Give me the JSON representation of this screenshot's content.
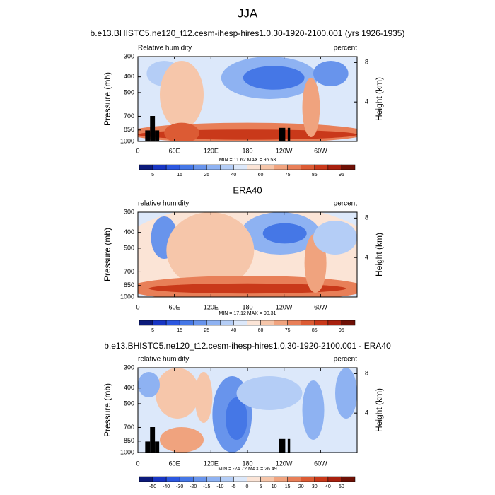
{
  "title": "JJA",
  "chart_data": [
    {
      "type": "contour",
      "title": "b.e13.BHISTC5.ne120_t12.cesm-ihesp-hires1.0.30-1920-2100.001 (yrs 1926-1935)",
      "left_label": "Relative humidity",
      "right_label": "percent",
      "stats": "MIN = 11.62  MAX = 96.53",
      "ylabel": "Pressure (mb)",
      "y2label": "Height (km)",
      "xlim": [
        0,
        360
      ],
      "xticks": [
        0,
        {
          "value": 60,
          "label": "60E"
        },
        {
          "value": 120,
          "label": "120E"
        },
        180,
        {
          "value": 240,
          "label": "120W"
        },
        {
          "value": 300,
          "label": "60W"
        }
      ],
      "ylim": [
        1000,
        300
      ],
      "yticks": [
        300,
        400,
        500,
        700,
        850,
        1000
      ],
      "ylog": true,
      "y2lim": [
        0,
        8.6
      ],
      "y2ticks": [
        4,
        8
      ],
      "colorbar": {
        "labels": [
          5,
          15,
          25,
          40,
          60,
          75,
          85,
          95
        ],
        "colors": [
          "#0c1a7a",
          "#1836c4",
          "#2c57e0",
          "#4577e6",
          "#6894ec",
          "#8eb2f2",
          "#b4cdf6",
          "#dce8fa",
          "#fbe4d6",
          "#f6c6aa",
          "#f0a37e",
          "#e87f58",
          "#dc5b34",
          "#c9391a",
          "#a8200e",
          "#6e1005"
        ]
      }
    },
    {
      "type": "contour",
      "title": "ERA40",
      "left_label": "relative humidity",
      "right_label": "percent",
      "stats": "MIN = 17.12  MAX = 90.31",
      "ylabel": "Pressure (mb)",
      "y2label": "Height (km)",
      "xlim": [
        0,
        360
      ],
      "xticks": [
        0,
        {
          "value": 60,
          "label": "60E"
        },
        {
          "value": 120,
          "label": "120E"
        },
        180,
        {
          "value": 240,
          "label": "120W"
        },
        {
          "value": 300,
          "label": "60W"
        }
      ],
      "ylim": [
        1000,
        300
      ],
      "yticks": [
        300,
        400,
        500,
        700,
        850,
        1000
      ],
      "ylog": true,
      "y2lim": [
        0,
        8.6
      ],
      "y2ticks": [
        4,
        8
      ],
      "colorbar": {
        "labels": [
          5,
          15,
          25,
          40,
          60,
          75,
          85,
          95
        ],
        "colors": [
          "#0c1a7a",
          "#1836c4",
          "#2c57e0",
          "#4577e6",
          "#6894ec",
          "#8eb2f2",
          "#b4cdf6",
          "#dce8fa",
          "#fbe4d6",
          "#f6c6aa",
          "#f0a37e",
          "#e87f58",
          "#dc5b34",
          "#c9391a",
          "#a8200e",
          "#6e1005"
        ]
      }
    },
    {
      "type": "contour",
      "title": "b.e13.BHISTC5.ne120_t12.cesm-ihesp-hires1.0.30-1920-2100.001 - ERA40",
      "left_label": "relative humidity",
      "right_label": "percent",
      "stats": "MIN = -24.72  MAX = 26.49",
      "ylabel": "Pressure (mb)",
      "y2label": "Height (km)",
      "xlim": [
        0,
        360
      ],
      "xticks": [
        0,
        {
          "value": 60,
          "label": "60E"
        },
        {
          "value": 120,
          "label": "120E"
        },
        180,
        {
          "value": 240,
          "label": "120W"
        },
        {
          "value": 300,
          "label": "60W"
        }
      ],
      "ylim": [
        1000,
        300
      ],
      "yticks": [
        300,
        400,
        500,
        700,
        850,
        1000
      ],
      "ylog": true,
      "y2lim": [
        0,
        8.6
      ],
      "y2ticks": [
        4,
        8
      ],
      "colorbar": {
        "labels": [
          -50,
          -40,
          -30,
          -20,
          -15,
          -10,
          -5,
          0,
          5,
          10,
          15,
          20,
          30,
          40,
          50
        ],
        "colors": [
          "#0c1a7a",
          "#1836c4",
          "#2c57e0",
          "#4577e6",
          "#6894ec",
          "#8eb2f2",
          "#b4cdf6",
          "#dce8fa",
          "#fbe4d6",
          "#f6c6aa",
          "#f0a37e",
          "#e87f58",
          "#dc5b34",
          "#c9391a",
          "#a8200e",
          "#6e1005"
        ]
      }
    }
  ]
}
